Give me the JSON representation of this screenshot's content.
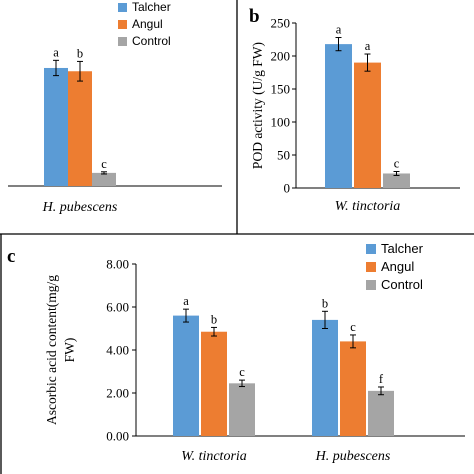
{
  "colors": {
    "Talcher": "#5B9BD5",
    "Angul": "#ED7D31",
    "Control": "#A5A5A5"
  },
  "chart_data": [
    {
      "panel_label": "",
      "type": "bar",
      "xlabel": "",
      "ylabel": "",
      "categories": [
        "H. pubescens"
      ],
      "series": [
        {
          "name": "Talcher",
          "values": [
            5.4
          ],
          "errors": [
            0.35
          ],
          "letters": [
            "a"
          ]
        },
        {
          "name": "Angul",
          "values": [
            5.25
          ],
          "errors": [
            0.45
          ],
          "letters": [
            "b"
          ]
        },
        {
          "name": "Control",
          "values": [
            0.6
          ],
          "errors": [
            0.05
          ],
          "letters": [
            "c"
          ]
        }
      ],
      "ylim": [
        0,
        7
      ],
      "legend": "top-right",
      "grid": false
    },
    {
      "panel_label": "b",
      "type": "bar",
      "ylabel": "POD activity (U/g FW)",
      "categories": [
        "W. tinctoria"
      ],
      "series": [
        {
          "name": "Talcher",
          "values": [
            218
          ],
          "errors": [
            10
          ],
          "letters": [
            "a"
          ]
        },
        {
          "name": "Angul",
          "values": [
            190
          ],
          "errors": [
            13
          ],
          "letters": [
            "a"
          ]
        },
        {
          "name": "Control",
          "values": [
            22
          ],
          "errors": [
            3
          ],
          "letters": [
            "c"
          ]
        }
      ],
      "yticks": [
        "0",
        "50",
        "100",
        "150",
        "200",
        "250"
      ],
      "ylim": [
        0,
        250
      ],
      "legend": "none",
      "grid": false
    },
    {
      "panel_label": "c",
      "type": "bar",
      "ylabel": "Ascorbic acid content(mg/g FW)",
      "ylabel_lines": [
        "Ascorbic acid content(mg/g",
        "FW)"
      ],
      "categories": [
        "W. tinctoria",
        "H. pubescens"
      ],
      "series": [
        {
          "name": "Talcher",
          "values": [
            5.6,
            5.4
          ],
          "errors": [
            0.3,
            0.4
          ],
          "letters": [
            "a",
            "b"
          ]
        },
        {
          "name": "Angul",
          "values": [
            4.85,
            4.4
          ],
          "errors": [
            0.2,
            0.3
          ],
          "letters": [
            "b",
            "c"
          ]
        },
        {
          "name": "Control",
          "values": [
            2.45,
            2.1
          ],
          "errors": [
            0.15,
            0.18
          ],
          "letters": [
            "c",
            "f"
          ]
        }
      ],
      "yticks": [
        "0.00",
        "2.00",
        "4.00",
        "6.00",
        "8.00"
      ],
      "ylim": [
        0,
        8
      ],
      "legend": "top-right",
      "grid": false
    }
  ]
}
